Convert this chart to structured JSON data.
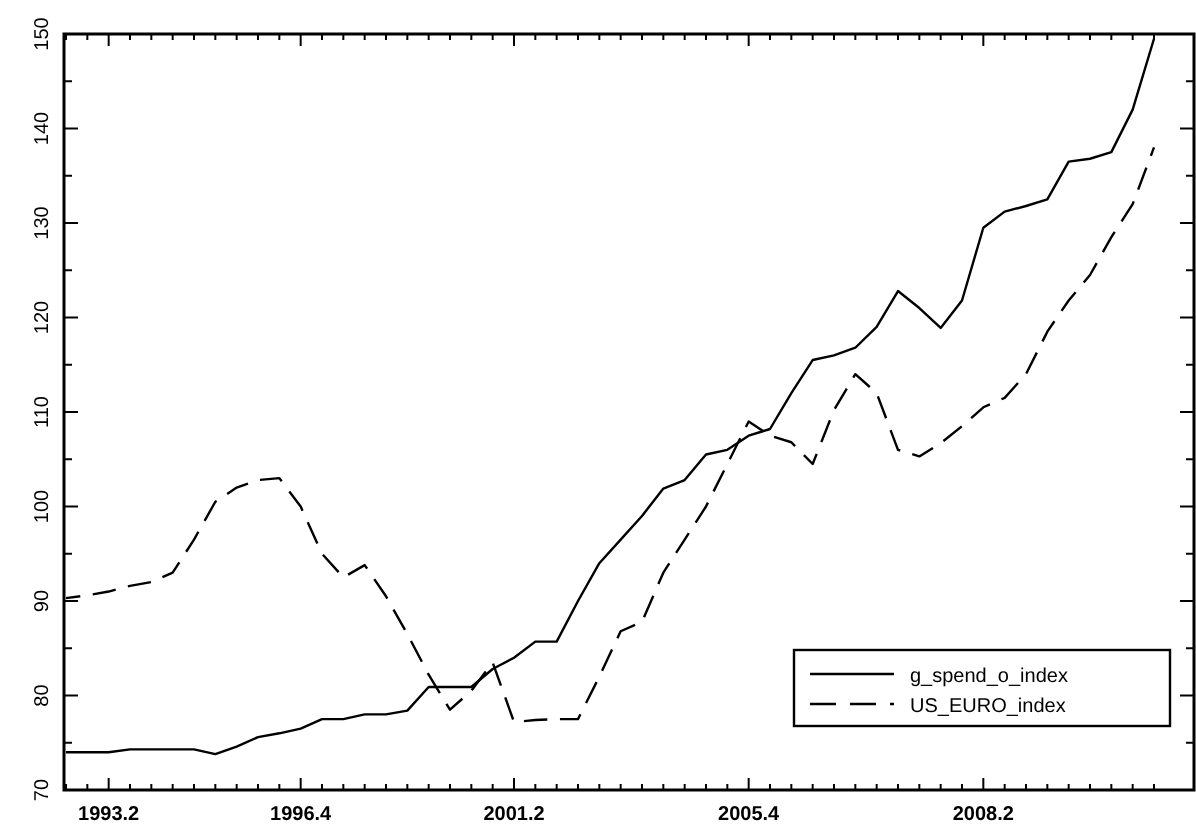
{
  "chart_data": {
    "type": "line",
    "legend": "bottom right",
    "ylim": [
      70,
      150
    ],
    "categories": [
      null,
      null,
      "1993.2",
      null,
      null,
      null,
      null,
      null,
      null,
      null,
      null,
      "1996.4",
      null,
      null,
      null,
      null,
      null,
      null,
      null,
      null,
      null,
      "2001.2",
      null,
      null,
      null,
      null,
      null,
      null,
      null,
      null,
      null,
      null,
      "2005.4",
      null,
      null,
      null,
      null,
      null,
      null,
      null,
      null,
      null,
      null,
      "2008.2",
      null,
      null,
      null,
      null,
      null,
      null,
      null,
      null
    ],
    "yticks": [
      70,
      {
        "value": 75,
        "label": null
      },
      80,
      {
        "value": 85,
        "label": null
      },
      90,
      {
        "value": 95,
        "label": null
      },
      100,
      {
        "value": 105,
        "label": null
      },
      110,
      {
        "value": 115,
        "label": null
      },
      120,
      {
        "value": 125,
        "label": null
      },
      130,
      {
        "value": 135,
        "label": null
      },
      140,
      {
        "value": 145,
        "label": null
      },
      150
    ],
    "series": [
      {
        "name": "g_spend_o_index",
        "color": "#000000",
        "line_style": "solid",
        "values": [
          74,
          74,
          74,
          74.3,
          74.3,
          74.3,
          74.3,
          73.8,
          74.6,
          75.6,
          76,
          76.5,
          77.5,
          77.5,
          78,
          78,
          78.4,
          80.9,
          80.9,
          80.9,
          82.8,
          84,
          85.7,
          85.7,
          90,
          94,
          96.5,
          99,
          101.9,
          102.8,
          105.5,
          106,
          107.5,
          108.2,
          112,
          115.5,
          116,
          116.8,
          119,
          122.8,
          121,
          118.9,
          121.8,
          129.5,
          131.2,
          131.8,
          132.5,
          136.5,
          136.8,
          137.5,
          142,
          149.5
        ]
      },
      {
        "name": "US_EURO_index",
        "color": "#000000",
        "line_style": "dashed",
        "values": [
          90.3,
          90.6,
          91,
          91.6,
          92,
          93,
          96.5,
          100.5,
          102,
          102.8,
          103,
          100,
          95,
          92.5,
          93.8,
          90.5,
          86.5,
          82.2,
          78.5,
          80.5,
          83.5,
          77.2,
          77.4,
          77.5,
          77.5,
          82,
          86.8,
          87.8,
          93,
          96.5,
          100,
          104.5,
          109,
          107.5,
          106.8,
          104.5,
          110.2,
          114,
          112,
          106,
          105.3,
          106.7,
          108.5,
          110.5,
          111.5,
          114,
          118.5,
          121.8,
          124.5,
          128.5,
          132,
          138
        ]
      }
    ]
  }
}
